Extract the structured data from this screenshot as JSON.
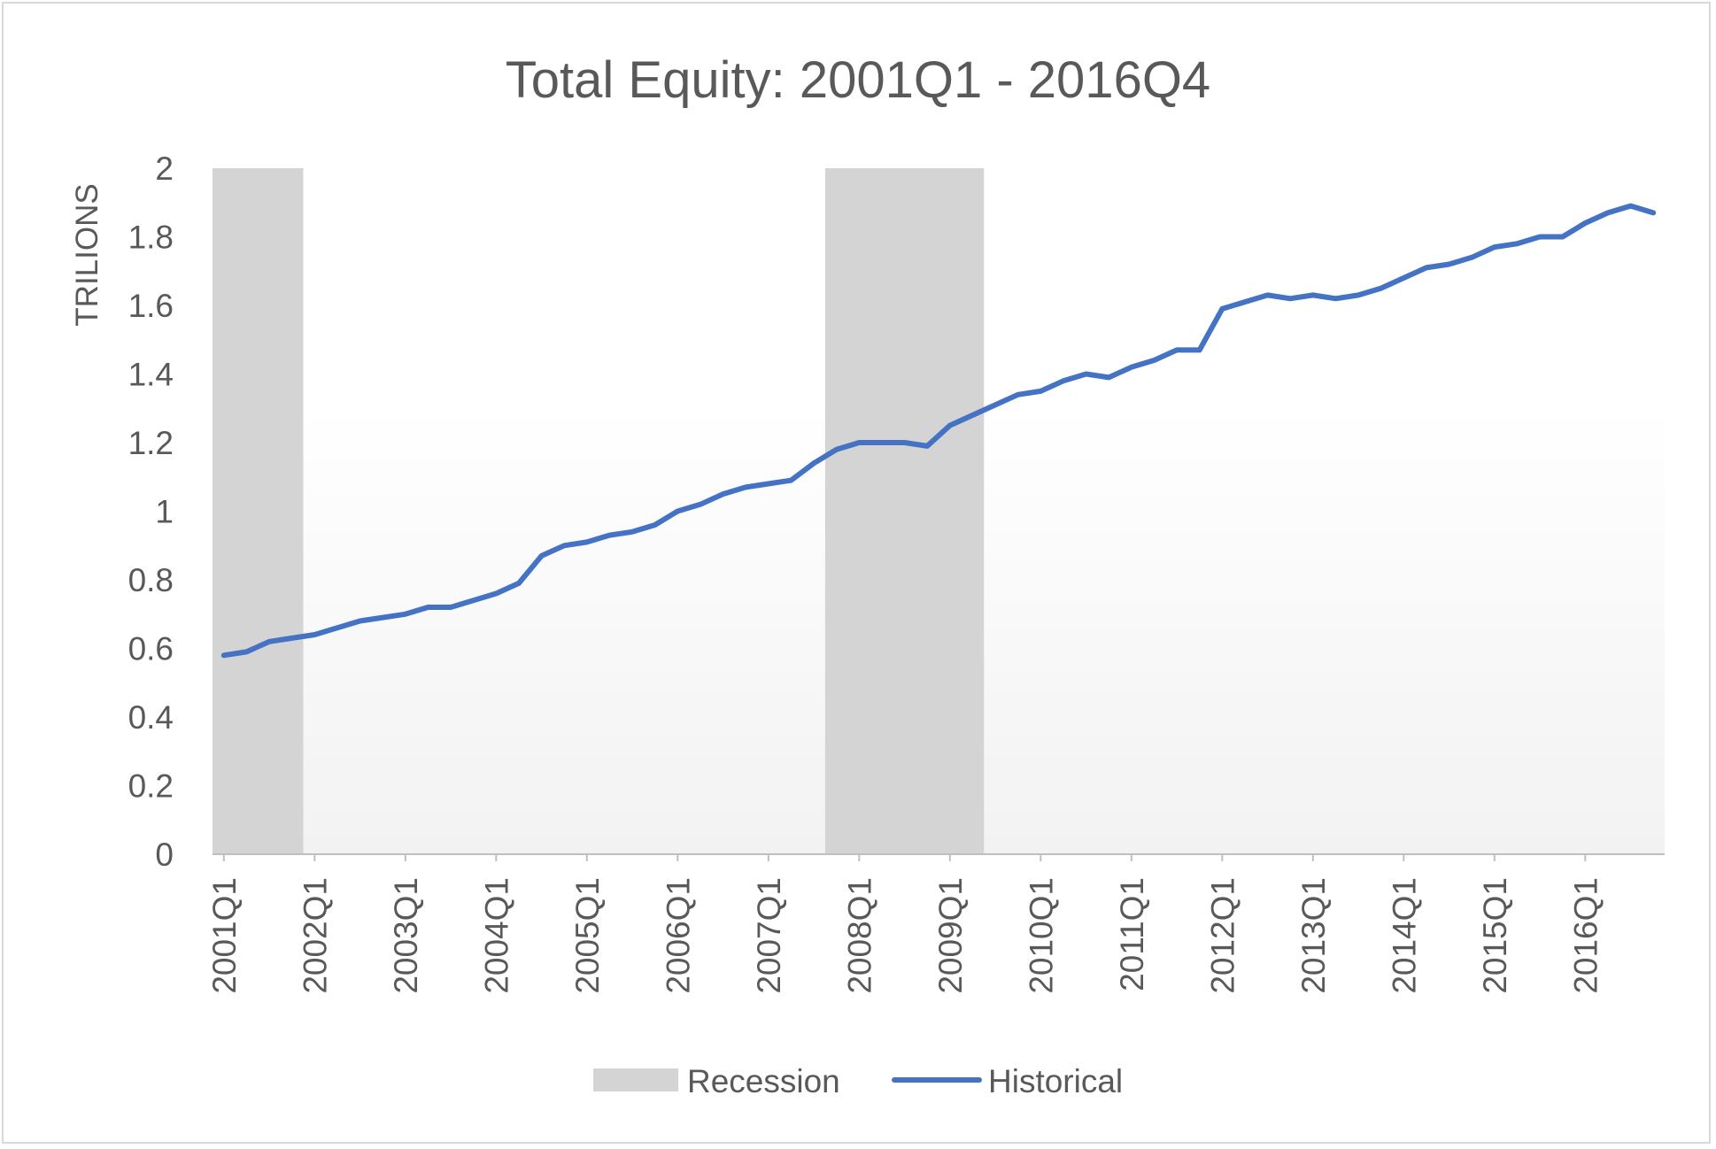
{
  "chart_data": {
    "type": "line",
    "title": "Total Equity: 2001Q1 - 2016Q4",
    "ylabel": "TRILIONS",
    "xlabel": "",
    "ylim": [
      0,
      2
    ],
    "y_ticks": [
      "0",
      "0.2",
      "0.4",
      "0.6",
      "0.8",
      "1",
      "1.2",
      "1.4",
      "1.6",
      "1.8",
      "2"
    ],
    "x_tick_labels": [
      "2001Q1",
      "2002Q1",
      "2003Q1",
      "2004Q1",
      "2005Q1",
      "2006Q1",
      "2007Q1",
      "2008Q1",
      "2009Q1",
      "2010Q1",
      "2011Q1",
      "2012Q1",
      "2013Q1",
      "2014Q1",
      "2015Q1",
      "2016Q1"
    ],
    "x_quarters_per_label": 4,
    "grid": false,
    "legend_position": "bottom",
    "legend": [
      {
        "name": "Recession",
        "type": "area",
        "color": "#d4d4d4"
      },
      {
        "name": "Historical",
        "type": "line",
        "color": "#4472c4"
      }
    ],
    "recessions": [
      {
        "start": "2001Q1",
        "end": "2001Q4"
      },
      {
        "start": "2007Q4",
        "end": "2009Q2"
      }
    ],
    "series": [
      {
        "name": "Historical",
        "color": "#4472c4",
        "values": [
          0.58,
          0.59,
          0.62,
          0.63,
          0.64,
          0.66,
          0.68,
          0.69,
          0.7,
          0.72,
          0.72,
          0.74,
          0.76,
          0.79,
          0.87,
          0.9,
          0.91,
          0.93,
          0.94,
          0.96,
          1.0,
          1.02,
          1.05,
          1.07,
          1.08,
          1.09,
          1.14,
          1.18,
          1.2,
          1.2,
          1.2,
          1.19,
          1.25,
          1.28,
          1.31,
          1.34,
          1.35,
          1.38,
          1.4,
          1.39,
          1.42,
          1.44,
          1.47,
          1.47,
          1.59,
          1.61,
          1.63,
          1.62,
          1.63,
          1.62,
          1.63,
          1.65,
          1.68,
          1.71,
          1.72,
          1.74,
          1.77,
          1.78,
          1.8,
          1.8,
          1.84,
          1.87,
          1.89,
          1.87
        ]
      }
    ]
  }
}
